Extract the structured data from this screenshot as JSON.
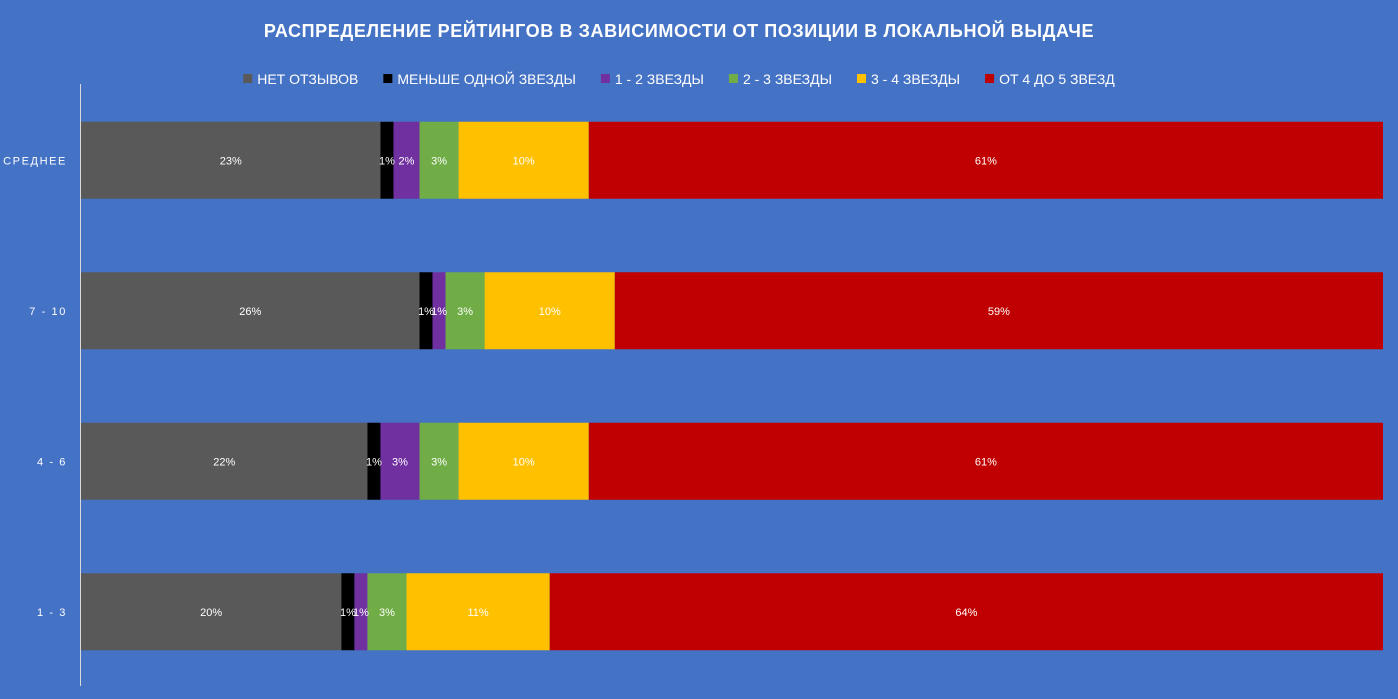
{
  "chart_data": {
    "type": "bar",
    "orientation": "horizontal",
    "stacked": true,
    "percent_stacked": true,
    "title": "РАСПРЕДЕЛЕНИЕ РЕЙТИНГОВ В ЗАВИСИМОСТИ ОТ ПОЗИЦИИ В ЛОКАЛЬНОЙ ВЫДАЧЕ",
    "xlabel": "",
    "ylabel": "",
    "legend_position": "top",
    "grid": false,
    "categories": [
      "СРЕДНЕЕ",
      "7 - 10",
      "4 - 6",
      "1 - 3"
    ],
    "series": [
      {
        "name": "НЕТ ОТЗЫВОВ",
        "color": "#595959",
        "values": [
          23,
          26,
          22,
          20
        ],
        "labels": [
          "23%",
          "26%",
          "22%",
          "20%"
        ]
      },
      {
        "name": "МЕНЬШЕ ОДНОЙ ЗВЕЗДЫ",
        "color": "#000000",
        "values": [
          1,
          1,
          1,
          1
        ],
        "labels": [
          "1%",
          "1%",
          "1%",
          "1%"
        ]
      },
      {
        "name": "1 - 2 ЗВЕЗДЫ",
        "color": "#7030A0",
        "values": [
          2,
          1,
          3,
          1
        ],
        "labels": [
          "2%",
          "1%",
          "3%",
          "1%"
        ]
      },
      {
        "name": "2 - 3 ЗВЕЗДЫ",
        "color": "#70AD47",
        "values": [
          3,
          3,
          3,
          3
        ],
        "labels": [
          "3%",
          "3%",
          "3%",
          "3%"
        ]
      },
      {
        "name": "3 - 4 ЗВЕЗДЫ",
        "color": "#FFC000",
        "values": [
          10,
          10,
          10,
          11
        ],
        "labels": [
          "10%",
          "10%",
          "10%",
          "11%"
        ]
      },
      {
        "name": "ОТ 4 ДО 5 ЗВЕЗД",
        "color": "#C00000",
        "values": [
          61,
          59,
          61,
          64
        ],
        "labels": [
          "61%",
          "59%",
          "61%",
          "64%"
        ]
      }
    ],
    "background_color": "#4472C4",
    "text_color": "#FFFFFF",
    "axis_line_color": "#D9D9D9"
  }
}
